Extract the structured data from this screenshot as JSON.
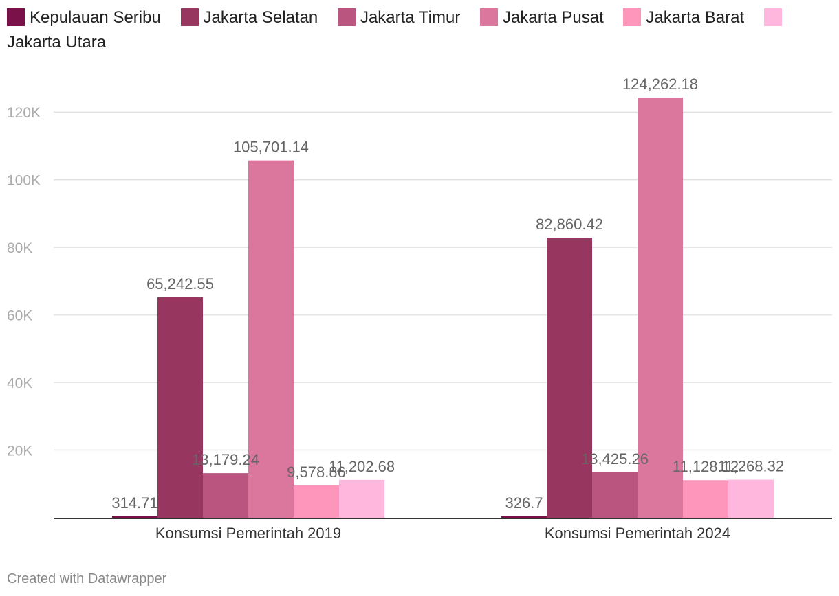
{
  "chart_data": {
    "type": "bar",
    "categories": [
      "Konsumsi Pemerintah 2019",
      "Konsumsi Pemerintah 2024"
    ],
    "series": [
      {
        "name": "Kepulauan Seribu",
        "color": "#7a1148",
        "values": [
          314.71,
          326.7
        ],
        "labels": [
          "314.71",
          "326.7"
        ]
      },
      {
        "name": "Jakarta Selatan",
        "color": "#97365f",
        "values": [
          65242.55,
          82860.42
        ],
        "labels": [
          "65,242.55",
          "82,860.42"
        ]
      },
      {
        "name": "Jakarta Timur",
        "color": "#ba557f",
        "values": [
          13179.24,
          13425.26
        ],
        "labels": [
          "13,179.24",
          "13,425.26"
        ]
      },
      {
        "name": "Jakarta Pusat",
        "color": "#db769d",
        "values": [
          105701.14,
          124262.18
        ],
        "labels": [
          "105,701.14",
          "124,262.18"
        ]
      },
      {
        "name": "Jakarta Barat",
        "color": "#fe95bb",
        "values": [
          9578.86,
          11128.12
        ],
        "labels": [
          "9,578.86",
          "11,128.12"
        ]
      },
      {
        "name": "Jakarta Utara",
        "color": "#ffb7de",
        "values": [
          11202.68,
          11268.32
        ],
        "labels": [
          "11,202.68",
          "11,268.32"
        ]
      }
    ],
    "ylim": [
      0,
      130000
    ],
    "yticks": [
      20000,
      40000,
      60000,
      80000,
      100000,
      120000
    ],
    "ytick_labels": [
      "20K",
      "40K",
      "60K",
      "80K",
      "100K",
      "120K"
    ],
    "grid": true,
    "legend": "top"
  },
  "footer": "Created with Datawrapper"
}
